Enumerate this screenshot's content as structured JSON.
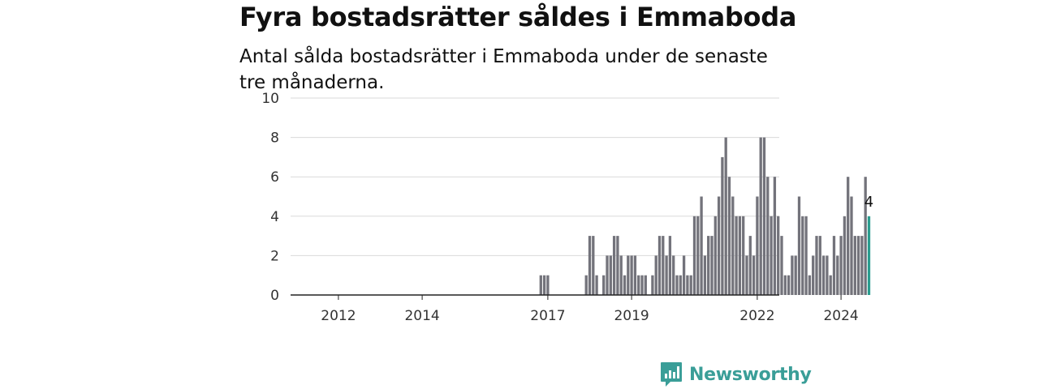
{
  "title": "Fyra bostadsrätter såldes i Emmaboda",
  "subtitle": "Antal sålda bostadsrätter i Emmaboda under de senaste tre månaderna.",
  "brand": {
    "name": "Newsworthy",
    "color": "#3a9e98",
    "icon": "bar-chart-speech-bubble-icon"
  },
  "chart_data": {
    "type": "bar",
    "x_unit": "month",
    "ylim": [
      0,
      10
    ],
    "yticks": [
      0,
      2,
      4,
      6,
      8,
      10
    ],
    "xticks": [
      "2012",
      "2014",
      "2017",
      "2019",
      "2022",
      "2024"
    ],
    "grid": true,
    "colors": {
      "bar": "#73737b",
      "highlight": "#2a9d8f"
    },
    "highlight_label": "4",
    "series": [
      {
        "start_month": "2011-06",
        "values": [
          0,
          0,
          0,
          0,
          0,
          0,
          0,
          0,
          0,
          0,
          0,
          0,
          0,
          0,
          0,
          0,
          0,
          0,
          0,
          0,
          0,
          0,
          0,
          0,
          0,
          0,
          0,
          0,
          0,
          0,
          0,
          0,
          0,
          0,
          0,
          0,
          0,
          0,
          0,
          0,
          0,
          0,
          0,
          0,
          0,
          0,
          0,
          0,
          0,
          0,
          0,
          0,
          0,
          0,
          0,
          0,
          0,
          0,
          0,
          0,
          0,
          0,
          0,
          0,
          0,
          0,
          0,
          0,
          0,
          0,
          0,
          1,
          1,
          1,
          0,
          0,
          0,
          0,
          0,
          0,
          0,
          0,
          0,
          0,
          1,
          3,
          3,
          1,
          0,
          1,
          2,
          2,
          3,
          3,
          2,
          1,
          2,
          2,
          2,
          1,
          1,
          1,
          0,
          1,
          2,
          3,
          3,
          2,
          3,
          2,
          1,
          1,
          2,
          1,
          1,
          4,
          4,
          5,
          2,
          3,
          3,
          4,
          5,
          7,
          8,
          6,
          5,
          4,
          4,
          4,
          2,
          3,
          2,
          5,
          8,
          8,
          6,
          4,
          6,
          4,
          3,
          1,
          1,
          2,
          2,
          5,
          4,
          4,
          1,
          2,
          3,
          3,
          2,
          2,
          1,
          3,
          2,
          3,
          4,
          6,
          5,
          3,
          3,
          3,
          6,
          4
        ]
      }
    ]
  }
}
